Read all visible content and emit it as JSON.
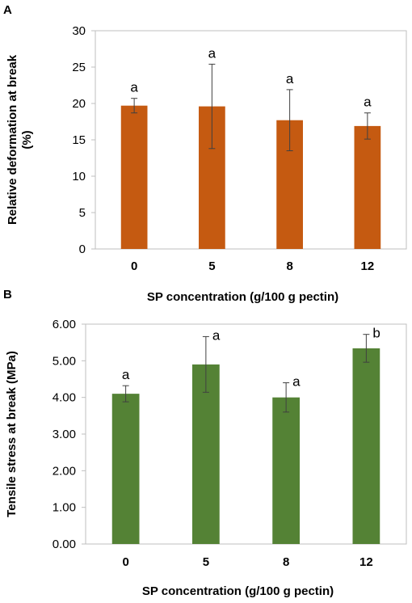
{
  "chart_data": [
    {
      "panel": "A",
      "type": "bar",
      "categories": [
        "0",
        "5",
        "8",
        "12"
      ],
      "values": [
        19.7,
        19.6,
        17.7,
        16.9
      ],
      "errors": [
        1.0,
        5.8,
        4.2,
        1.8
      ],
      "significance": [
        "a",
        "a",
        "a",
        "a"
      ],
      "ylim": [
        0,
        30
      ],
      "yticks": [
        "0",
        "5",
        "10",
        "15",
        "20",
        "25",
        "30"
      ],
      "xlabel": "SP concentration (g/100 g pectin)",
      "ylabel": "Relative deformation at break (%)",
      "bar_color": "#c55a11",
      "grid": false
    },
    {
      "panel": "B",
      "type": "bar",
      "categories": [
        "0",
        "5",
        "8",
        "12"
      ],
      "values": [
        4.1,
        4.9,
        4.0,
        5.34
      ],
      "errors": [
        0.22,
        0.76,
        0.4,
        0.38
      ],
      "significance": [
        "a",
        "a",
        "a",
        "b"
      ],
      "ylim": [
        0,
        6
      ],
      "yticks": [
        "0.00",
        "1.00",
        "2.00",
        "3.00",
        "4.00",
        "5.00",
        "6.00"
      ],
      "xlabel": "SP concentration (g/100 g pectin)",
      "ylabel": "Tensile stress at break (MPa)",
      "bar_color": "#548235",
      "grid": false
    }
  ]
}
